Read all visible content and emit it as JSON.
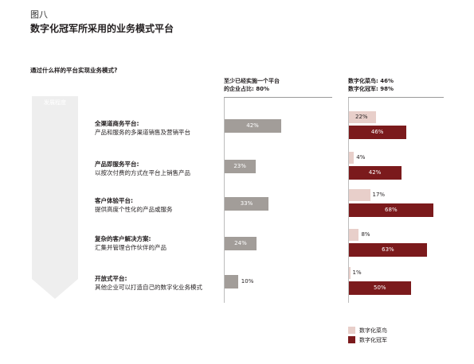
{
  "figure": {
    "label": "图八",
    "title": "数字化冠军所采用的业务模式平台",
    "question": "通过什么样的平台实现业务模式?"
  },
  "columns": {
    "share_header": [
      "至少已经实施一个平台",
      "的企业占比: 80%"
    ],
    "comparison_header": [
      "数字化菜鸟: 46%",
      "数字化冠军: 98%"
    ]
  },
  "arrow_label": "发展程度",
  "colors": {
    "gray_bar": "#a29d99",
    "novice_bar": "#e8cfca",
    "champion_bar": "#7b1a1c",
    "arrow": "#eeeeee"
  },
  "chart_data": {
    "type": "bar",
    "categories": [
      {
        "name": "全渠道商务平台:",
        "desc": "产品和服务的多渠道销售及营销平台"
      },
      {
        "name": "产品即服务平台:",
        "desc": "以按次付费的方式在平台上销售产品"
      },
      {
        "name": "客户体验平台:",
        "desc": "提供高度个性化的产品或服务"
      },
      {
        "name": "复杂的客户解决方案:",
        "desc": "汇集并管理合作伙伴的产品"
      },
      {
        "name": "开放式平台:",
        "desc": "其他企业可以打造自己的数字化业务模式"
      }
    ],
    "series": [
      {
        "name": "",
        "values": [
          42,
          23,
          33,
          24,
          10
        ],
        "labels": [
          "42%",
          "23%",
          "33%",
          "24%",
          "10%"
        ]
      },
      {
        "name": "数字化菜鸟",
        "values": [
          22,
          4,
          17,
          8,
          1
        ],
        "labels": [
          "22%",
          "4%",
          "17%",
          "8%",
          "1%"
        ]
      },
      {
        "name": "数字化冠军",
        "values": [
          46,
          42,
          68,
          63,
          50
        ],
        "labels": [
          "46%",
          "42%",
          "68%",
          "63%",
          "50%"
        ]
      }
    ],
    "legend": [
      "数字化菜鸟",
      "数字化冠军"
    ],
    "legend_position": "bottom-right",
    "xlim": [
      0,
      100
    ]
  }
}
